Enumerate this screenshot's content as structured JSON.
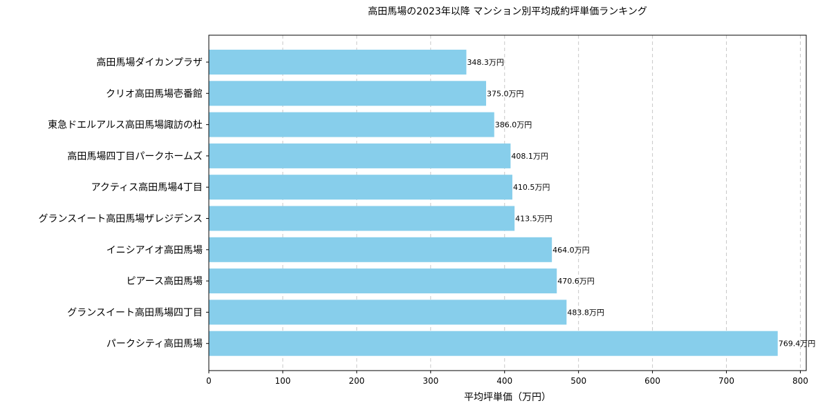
{
  "chart_data": {
    "type": "bar",
    "orientation": "horizontal",
    "title": "高田馬場の2023年以降 マンション別平均成約坪単価ランキング",
    "xlabel": "平均坪単価（万円）",
    "ylabel": "",
    "categories": [
      "高田馬場ダイカンプラザ",
      "クリオ高田馬場壱番館",
      "東急ドエルアルス高田馬場諏訪の杜",
      "高田馬場四丁目パークホームズ",
      "アクティス高田馬場4丁目",
      "グランスイート高田馬場ザレジデンス",
      "イニシアイオ高田馬場",
      "ピアース高田馬場",
      "グランスイート高田馬場四丁目",
      "パークシティ高田馬場"
    ],
    "values": [
      348.3,
      375.0,
      386.0,
      408.1,
      410.5,
      413.5,
      464.0,
      470.6,
      483.8,
      769.4
    ],
    "data_labels": [
      "348.3万円",
      "375.0万円",
      "386.0万円",
      "408.1万円",
      "410.5万円",
      "413.5万円",
      "464.0万円",
      "470.6万円",
      "483.8万円",
      "769.4万円"
    ],
    "xlim": [
      0,
      808
    ],
    "xticks": [
      0,
      100,
      200,
      300,
      400,
      500,
      600,
      700,
      800
    ],
    "xtick_labels": [
      "0",
      "100",
      "200",
      "300",
      "400",
      "500",
      "600",
      "700",
      "800"
    ],
    "grid": {
      "x": true,
      "y": false,
      "style": "dashed"
    },
    "bar_color": "#87CEEB"
  }
}
